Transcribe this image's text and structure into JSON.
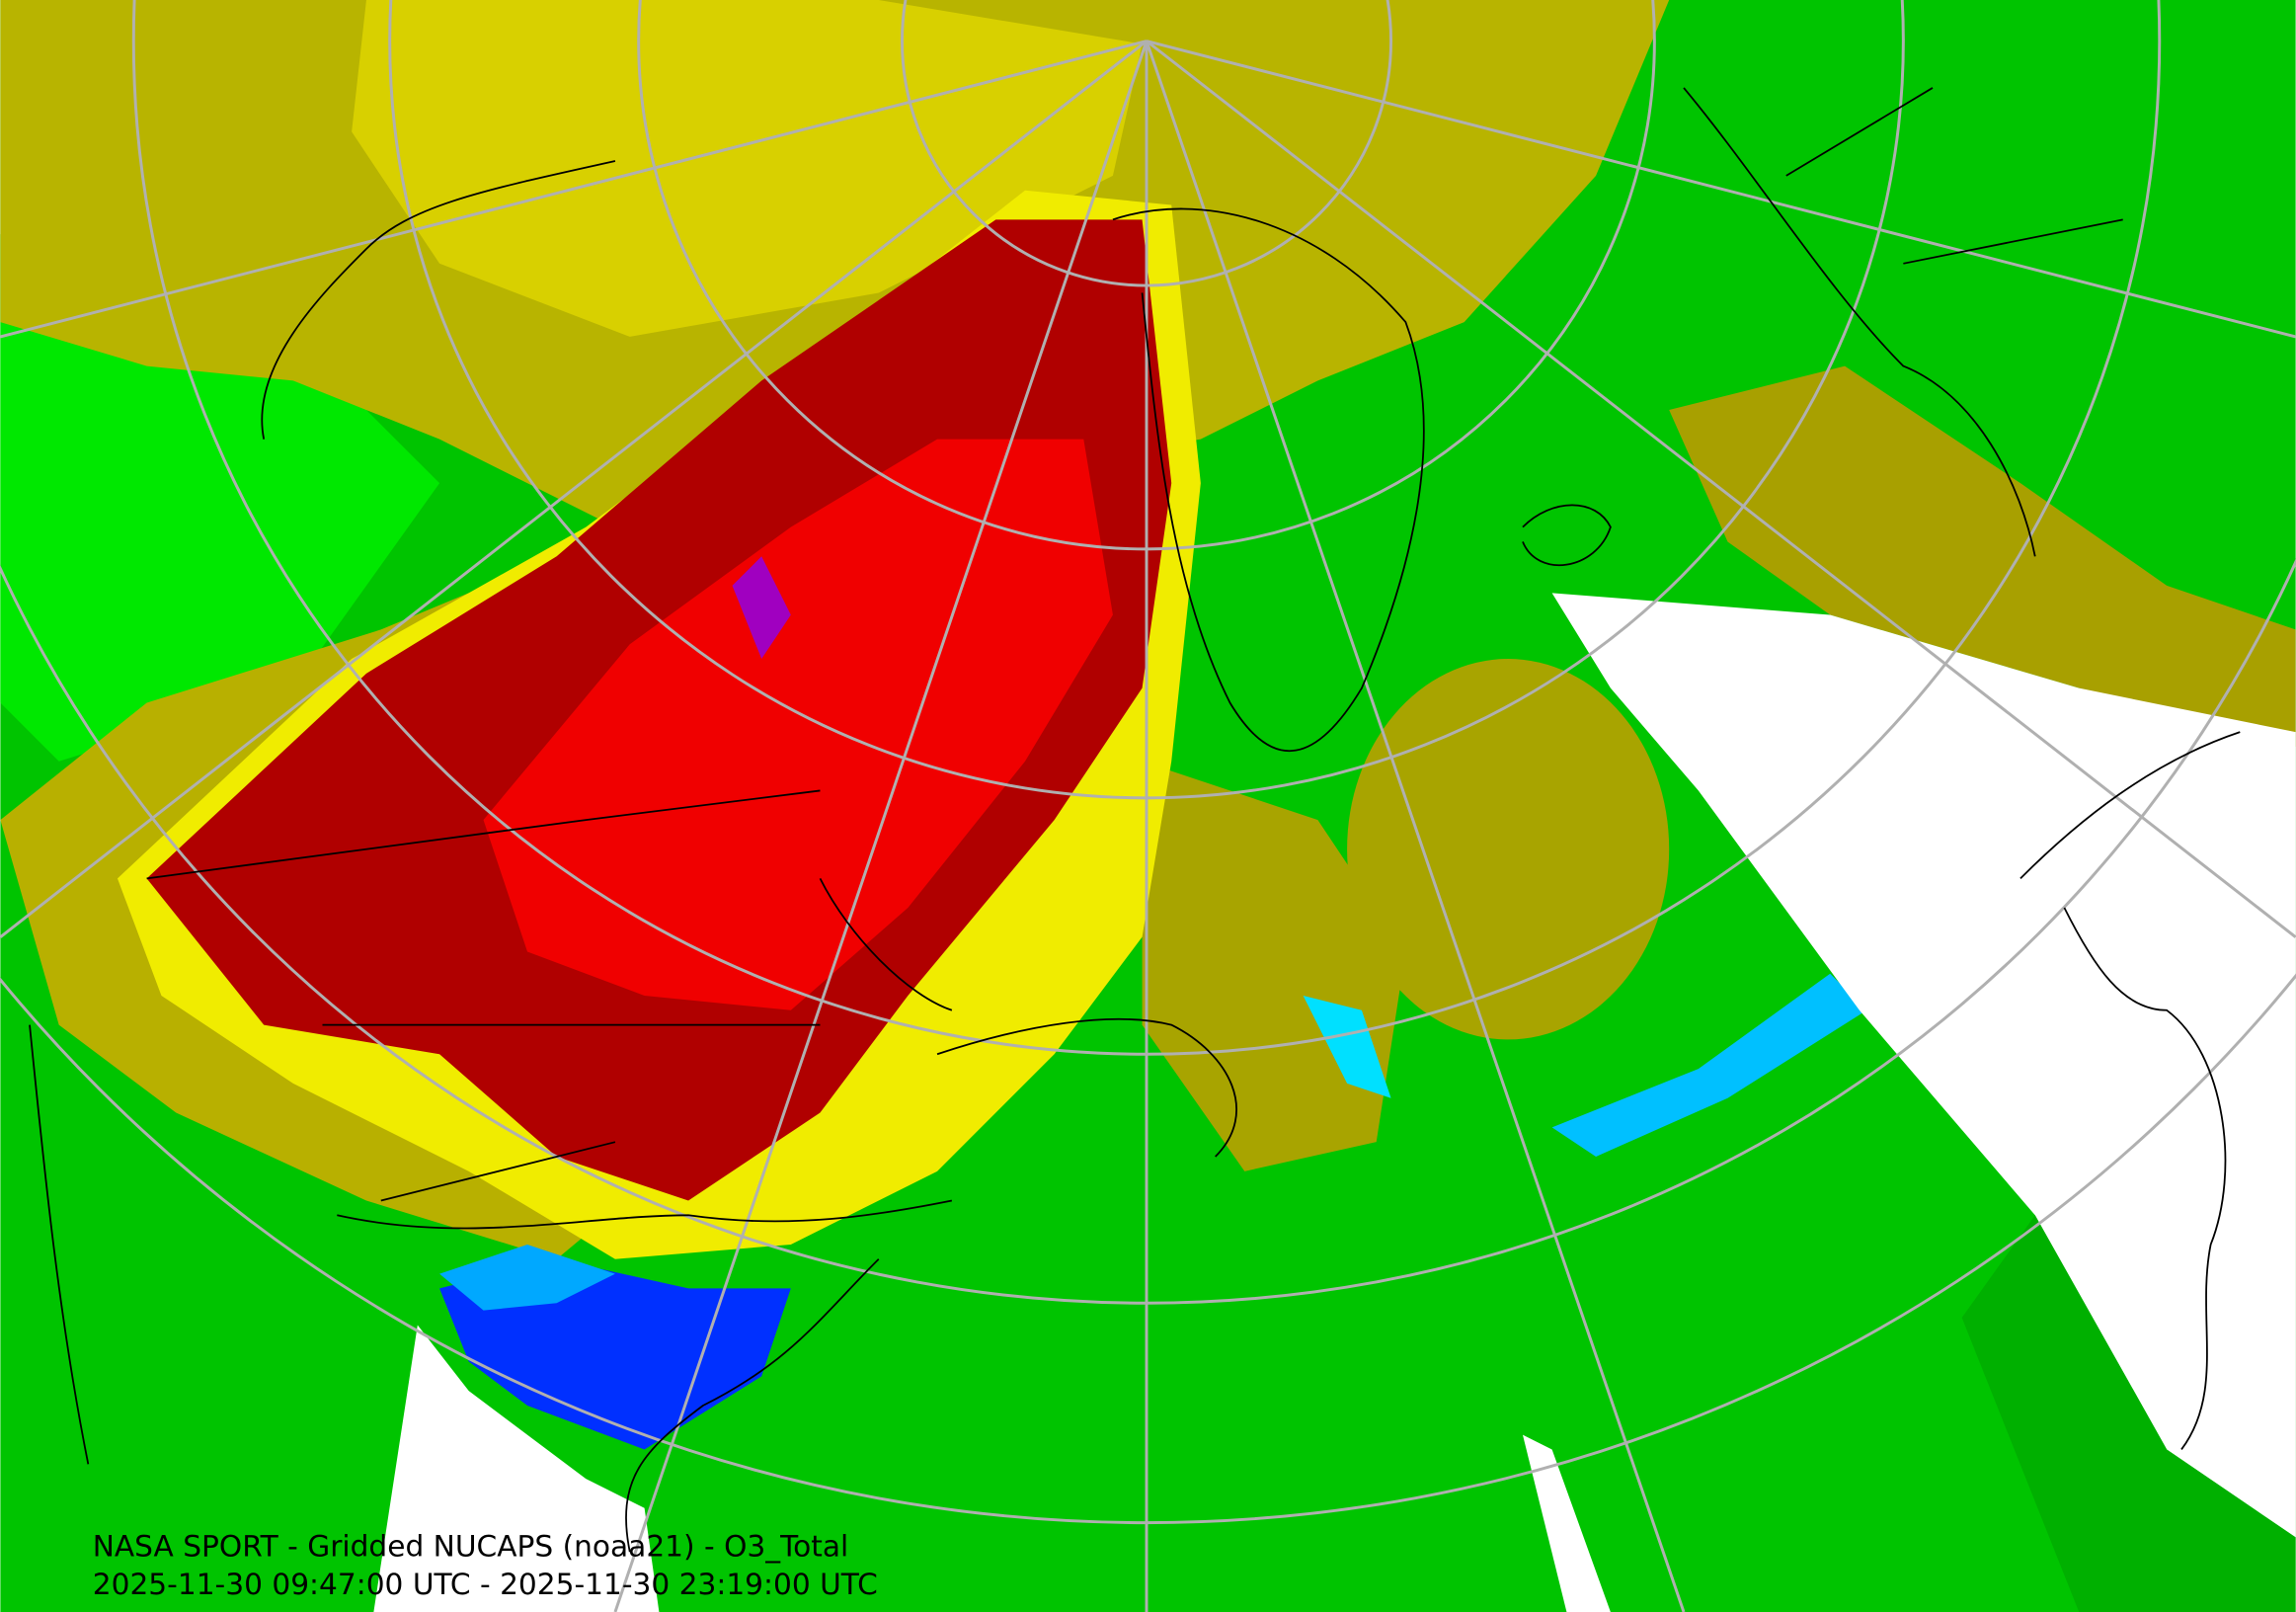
{
  "caption": {
    "line1": "NASA SPORT - Gridded NUCAPS (noaa21) - O3_Total",
    "line2": "2025-11-30 09:47:00 UTC - 2025-11-30 23:19:00 UTC"
  }
}
